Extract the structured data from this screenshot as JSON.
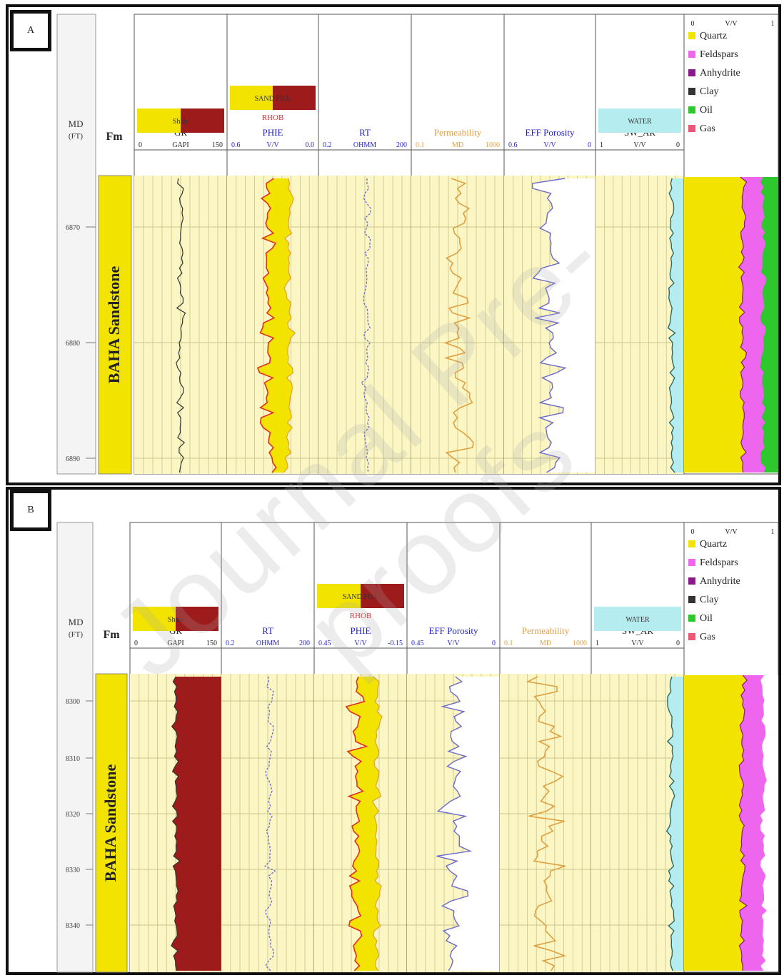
{
  "watermark": "Journal Pre-proofs",
  "colors": {
    "sand": "#fbf6c4",
    "yellow": "#f2e400",
    "maroon": "#9e1b1b",
    "blue_curve": "#6a6ad0",
    "orange_curve": "#e0a040",
    "cyan": "#b5ecf0",
    "pink": "#ee66ee",
    "purple": "#8a1a8a",
    "green": "#2ec82e",
    "grid": "#c9c58a"
  },
  "panel_a": {
    "label": "A",
    "md_header": "MD\n(FT)",
    "fm_header": "Fm",
    "tracks": [
      {
        "name": "GR",
        "scale": [
          "0",
          "GAPI",
          "150"
        ],
        "bar": "Shale",
        "name_color": "#222222"
      },
      {
        "name": "PHIE",
        "scale": [
          "0.6",
          "V/V",
          "0.0"
        ],
        "bar": "SAND FILL",
        "sub": "RHOB",
        "name_color": "#2222cc"
      },
      {
        "name": "RT",
        "scale": [
          "0.2",
          "OHMM",
          "200"
        ],
        "name_color": "#2222cc"
      },
      {
        "name": "Permeability",
        "scale": [
          "0.1",
          "MD",
          "1000"
        ],
        "name_color": "#e0a040"
      },
      {
        "name": "EFF Porosity",
        "scale": [
          "0.6",
          "V/V",
          "0"
        ],
        "name_color": "#2222cc"
      },
      {
        "name": "SW_AR",
        "scale": [
          "1",
          "V/V",
          "0"
        ],
        "bar": "WATER",
        "name_color": "#222222"
      }
    ],
    "depths": [
      "6870",
      "6880",
      "6890"
    ],
    "formation": "BAHA Sandstone",
    "legend_scale": [
      "0",
      "V/V",
      "1"
    ],
    "legend": [
      {
        "label": "Quartz",
        "color": "#f2e400"
      },
      {
        "label": "Feldspars",
        "color": "#ee66ee"
      },
      {
        "label": "Anhydrite",
        "color": "#8a1a8a"
      },
      {
        "label": "Clay",
        "color": "#333333"
      },
      {
        "label": "Oil",
        "color": "#2ec82e"
      },
      {
        "label": "Gas",
        "color": "#ee5577"
      }
    ]
  },
  "panel_b": {
    "label": "B",
    "md_header": "MD\n(FT)",
    "fm_header": "Fm",
    "tracks": [
      {
        "name": "GR",
        "scale": [
          "0",
          "GAPI",
          "150"
        ],
        "bar": "Shale",
        "name_color": "#222222"
      },
      {
        "name": "RT",
        "scale": [
          "0.2",
          "OHMM",
          "200"
        ],
        "name_color": "#2222cc"
      },
      {
        "name": "PHIE",
        "scale": [
          "0.45",
          "V/V",
          "-0.15"
        ],
        "bar": "SAND FILL",
        "sub": "RHOB",
        "name_color": "#2222cc"
      },
      {
        "name": "EFF Porosity",
        "scale": [
          "0.45",
          "V/V",
          "0"
        ],
        "name_color": "#2222cc"
      },
      {
        "name": "Permeability",
        "scale": [
          "0.1",
          "MD",
          "1000"
        ],
        "name_color": "#e0a040"
      },
      {
        "name": "SW_AR",
        "scale": [
          "1",
          "V/V",
          "0"
        ],
        "bar": "WATER",
        "name_color": "#222222"
      }
    ],
    "depths": [
      "8300",
      "8310",
      "8320",
      "8330",
      "8340"
    ],
    "formation": "BAHA Sandstone",
    "legend_scale": [
      "0",
      "V/V",
      "1"
    ],
    "legend": [
      {
        "label": "Quartz",
        "color": "#f2e400"
      },
      {
        "label": "Feldspars",
        "color": "#ee66ee"
      },
      {
        "label": "Anhydrite",
        "color": "#8a1a8a"
      },
      {
        "label": "Clay",
        "color": "#333333"
      },
      {
        "label": "Oil",
        "color": "#2ec82e"
      },
      {
        "label": "Gas",
        "color": "#ee5577"
      }
    ]
  }
}
